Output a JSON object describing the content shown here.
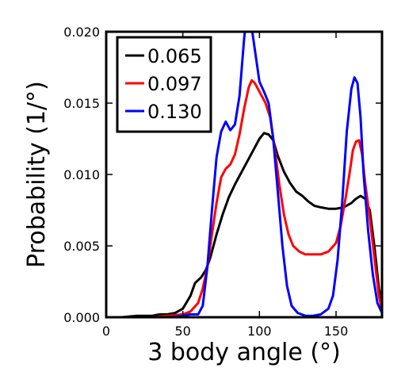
{
  "chart_data": {
    "type": "line",
    "xlabel": "3 body angle (°)",
    "ylabel": "Probability (1/°)",
    "xlim": [
      0,
      180
    ],
    "ylim": [
      0,
      0.02
    ],
    "xticks": [
      0,
      50,
      100,
      150
    ],
    "yticks": [
      "0.000",
      "0.005",
      "0.010",
      "0.015",
      "0.020"
    ],
    "legend_position": "top-left",
    "grid": false,
    "series": [
      {
        "name": "0.065",
        "color": "#000000",
        "points": [
          [
            0,
            0
          ],
          [
            10,
            0
          ],
          [
            20,
            0.0001
          ],
          [
            30,
            0.0001
          ],
          [
            35,
            0.0002
          ],
          [
            40,
            0.0002
          ],
          [
            45,
            0.0003
          ],
          [
            50,
            0.0006
          ],
          [
            55,
            0.0015
          ],
          [
            58,
            0.0024
          ],
          [
            62,
            0.0028
          ],
          [
            65,
            0.0033
          ],
          [
            68,
            0.0042
          ],
          [
            72,
            0.0058
          ],
          [
            76,
            0.0072
          ],
          [
            80,
            0.0084
          ],
          [
            84,
            0.0093
          ],
          [
            88,
            0.0101
          ],
          [
            92,
            0.0109
          ],
          [
            96,
            0.0117
          ],
          [
            100,
            0.0125
          ],
          [
            103,
            0.0129
          ],
          [
            106,
            0.0128
          ],
          [
            109,
            0.0124
          ],
          [
            112,
            0.0113
          ],
          [
            116,
            0.0102
          ],
          [
            120,
            0.0094
          ],
          [
            124,
            0.0088
          ],
          [
            128,
            0.0085
          ],
          [
            132,
            0.0081
          ],
          [
            136,
            0.0078
          ],
          [
            140,
            0.0077
          ],
          [
            145,
            0.0076
          ],
          [
            150,
            0.0076
          ],
          [
            155,
            0.0077
          ],
          [
            160,
            0.008
          ],
          [
            163,
            0.0083
          ],
          [
            166,
            0.0085
          ],
          [
            169,
            0.0083
          ],
          [
            172,
            0.0075
          ],
          [
            175,
            0.005
          ],
          [
            178,
            0.002
          ],
          [
            180,
            0.0008
          ]
        ]
      },
      {
        "name": "0.097",
        "color": "#ff0000",
        "points": [
          [
            0,
            0
          ],
          [
            30,
            0
          ],
          [
            40,
            0.0001
          ],
          [
            50,
            0.0002
          ],
          [
            55,
            0.0004
          ],
          [
            60,
            0.001
          ],
          [
            63,
            0.002
          ],
          [
            66,
            0.0035
          ],
          [
            69,
            0.0058
          ],
          [
            72,
            0.008
          ],
          [
            75,
            0.0098
          ],
          [
            78,
            0.0104
          ],
          [
            81,
            0.0107
          ],
          [
            84,
            0.0114
          ],
          [
            87,
            0.0128
          ],
          [
            90,
            0.0146
          ],
          [
            93,
            0.0161
          ],
          [
            95,
            0.0166
          ],
          [
            97,
            0.0164
          ],
          [
            100,
            0.0158
          ],
          [
            104,
            0.015
          ],
          [
            107,
            0.014
          ],
          [
            110,
            0.0118
          ],
          [
            113,
            0.0093
          ],
          [
            116,
            0.0072
          ],
          [
            119,
            0.0058
          ],
          [
            122,
            0.005
          ],
          [
            126,
            0.0046
          ],
          [
            130,
            0.0044
          ],
          [
            135,
            0.0044
          ],
          [
            140,
            0.0044
          ],
          [
            145,
            0.0046
          ],
          [
            150,
            0.0052
          ],
          [
            153,
            0.0064
          ],
          [
            156,
            0.0082
          ],
          [
            159,
            0.0102
          ],
          [
            161,
            0.0117
          ],
          [
            163,
            0.0123
          ],
          [
            165,
            0.0124
          ],
          [
            167,
            0.0114
          ],
          [
            169,
            0.0094
          ],
          [
            172,
            0.007
          ],
          [
            175,
            0.0042
          ],
          [
            178,
            0.0015
          ],
          [
            180,
            0.0005
          ]
        ]
      },
      {
        "name": "0.130",
        "color": "#0000ff",
        "points": [
          [
            0,
            0
          ],
          [
            40,
            0
          ],
          [
            50,
            0.0001
          ],
          [
            55,
            0.0002
          ],
          [
            60,
            0.0002
          ],
          [
            63,
            0.0008
          ],
          [
            66,
            0.0035
          ],
          [
            69,
            0.0075
          ],
          [
            72,
            0.0112
          ],
          [
            75,
            0.013
          ],
          [
            78,
            0.0137
          ],
          [
            81,
            0.0131
          ],
          [
            84,
            0.0135
          ],
          [
            87,
            0.0155
          ],
          [
            90,
            0.0195
          ],
          [
            92,
            0.0215
          ],
          [
            94,
            0.021
          ],
          [
            96,
            0.0195
          ],
          [
            98,
            0.018
          ],
          [
            100,
            0.0165
          ],
          [
            103,
            0.0158
          ],
          [
            106,
            0.015
          ],
          [
            109,
            0.0125
          ],
          [
            112,
            0.0088
          ],
          [
            115,
            0.005
          ],
          [
            118,
            0.0022
          ],
          [
            121,
            0.0008
          ],
          [
            125,
            0.0003
          ],
          [
            130,
            0.0001
          ],
          [
            135,
            0.0001
          ],
          [
            140,
            0.0002
          ],
          [
            145,
            0.0006
          ],
          [
            148,
            0.0015
          ],
          [
            151,
            0.004
          ],
          [
            154,
            0.008
          ],
          [
            157,
            0.013
          ],
          [
            160,
            0.016
          ],
          [
            162,
            0.0168
          ],
          [
            164,
            0.0164
          ],
          [
            166,
            0.014
          ],
          [
            168,
            0.01
          ],
          [
            171,
            0.006
          ],
          [
            174,
            0.003
          ],
          [
            177,
            0.001
          ],
          [
            180,
            0.0003
          ]
        ]
      }
    ]
  }
}
